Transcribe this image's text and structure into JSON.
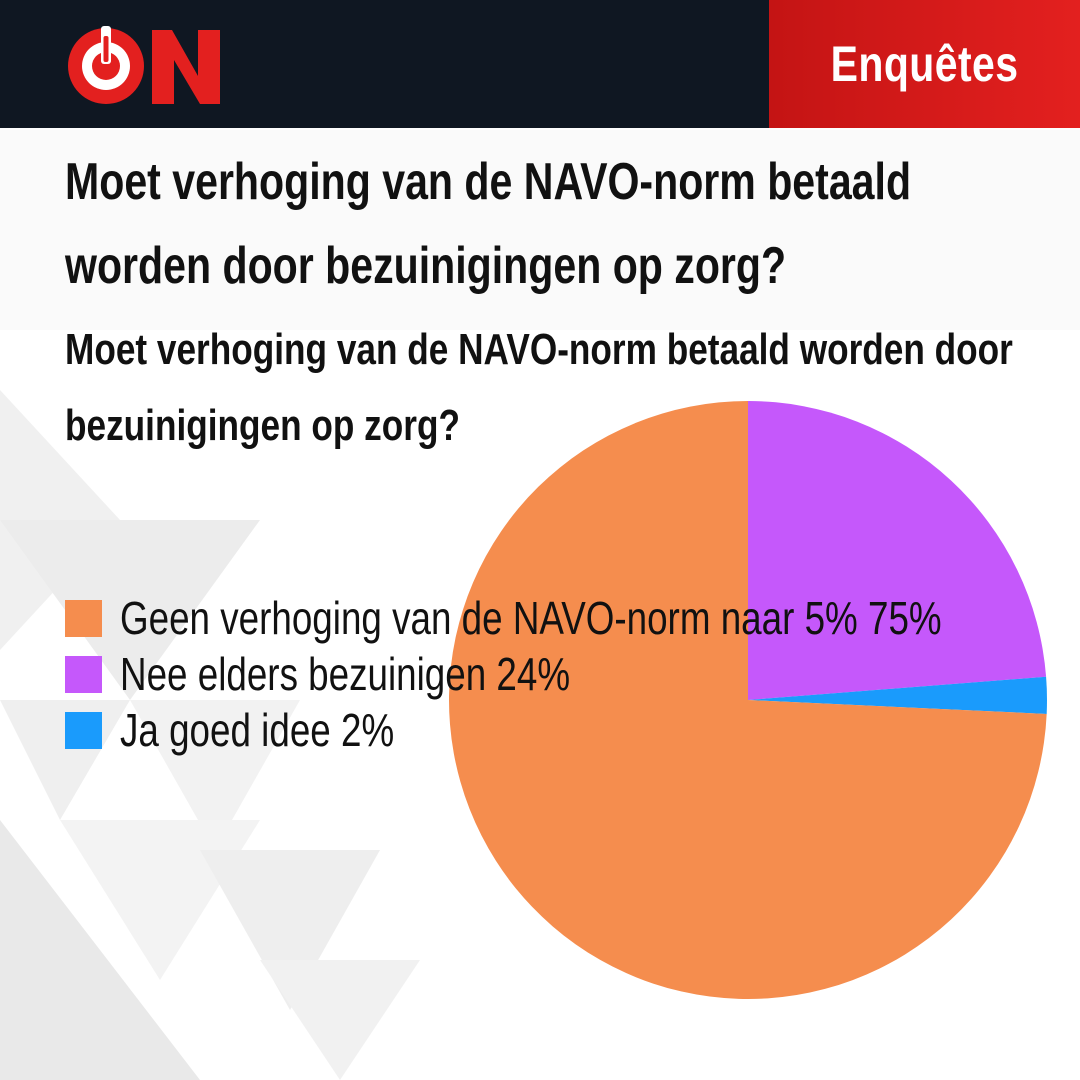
{
  "header": {
    "logo_text": "ON",
    "section_label": "Enquêtes"
  },
  "title": "Moet verhoging van de NAVO-norm betaald worden door bezuinigingen op zorg?",
  "subtitle": "Moet verhoging van de NAVO-norm betaald worden door bezuinigingen op zorg?",
  "colors": {
    "header_bg": "#0f1722",
    "accent_red": "#e3201f",
    "slice_orange": "#f58d4e",
    "slice_purple": "#c558fb",
    "slice_blue": "#1a9bfc"
  },
  "chart_data": {
    "type": "pie",
    "title": "Moet verhoging van de NAVO-norm betaald worden door bezuinigingen op zorg?",
    "start_angle": "12 o'clock, clockwise",
    "legend_position": "left",
    "slices": [
      {
        "label": "Geen verhoging van de NAVO-norm naar 5%",
        "value": 75,
        "value_label": "75%",
        "color": "#f58d4e",
        "legend_text": "Geen verhoging van de NAVO-norm naar 5% 75%"
      },
      {
        "label": "Nee elders bezuinigen",
        "value": 24,
        "value_label": "24%",
        "color": "#c558fb",
        "legend_text": "Nee elders bezuinigen 24%"
      },
      {
        "label": "Ja goed idee",
        "value": 2,
        "value_label": "2%",
        "color": "#1a9bfc",
        "legend_text": "Ja goed idee 2%"
      }
    ]
  }
}
